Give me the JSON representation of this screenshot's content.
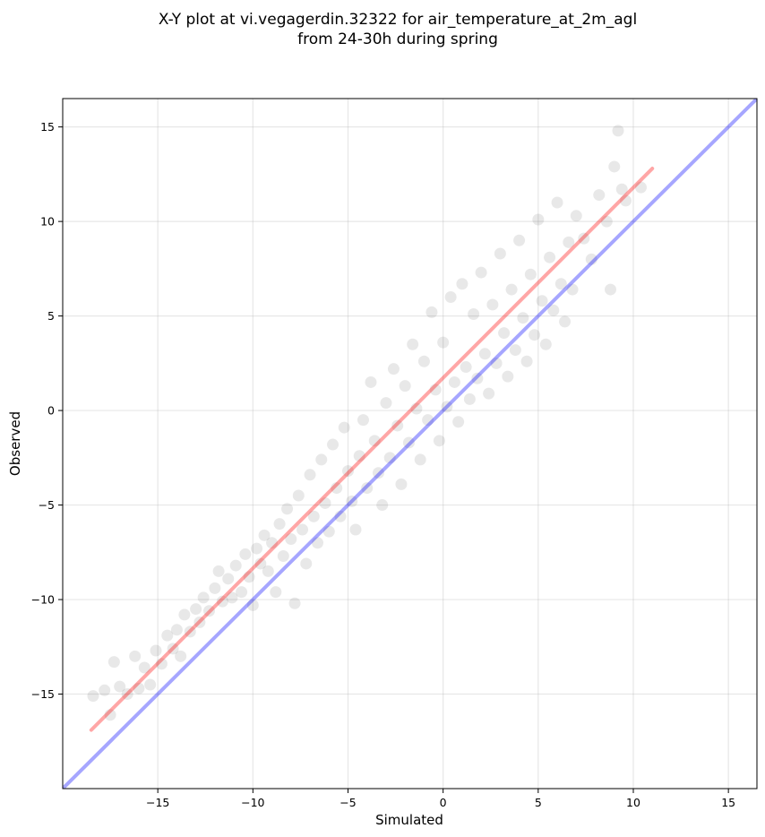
{
  "chart_data": {
    "type": "scatter",
    "title": "X-Y plot at vi.vegagerdin.32322 for air_temperature_at_2m_agl",
    "subtitle": "from 24-30h during spring",
    "xlabel": "Simulated",
    "ylabel": "Observed",
    "xlim": [
      -20.0,
      16.5
    ],
    "ylim": [
      -20.0,
      16.5
    ],
    "xticks": [
      -15,
      -10,
      -5,
      0,
      5,
      10,
      15
    ],
    "yticks": [
      -15,
      -10,
      -5,
      0,
      5,
      10,
      15
    ],
    "xtick_labels": [
      "−15",
      "−10",
      "−5",
      "0",
      "5",
      "10",
      "15"
    ],
    "ytick_labels": [
      "−15",
      "−10",
      "−5",
      "0",
      "5",
      "10",
      "15"
    ],
    "grid": true,
    "point_color": "#000000",
    "point_opacity": 0.09,
    "identity_line": {
      "color": "#0000ff",
      "opacity": 0.35,
      "x": [
        -20.0,
        16.5
      ],
      "y": [
        -20.0,
        16.5
      ]
    },
    "fit_line": {
      "color": "#ff0000",
      "opacity": 0.35,
      "x": [
        -18.5,
        11.0
      ],
      "y": [
        -16.9,
        12.8
      ]
    },
    "points_estimated": [
      [
        -18.4,
        -15.1
      ],
      [
        -17.8,
        -14.8
      ],
      [
        -17.5,
        -16.1
      ],
      [
        -17.3,
        -13.3
      ],
      [
        -17.0,
        -14.6
      ],
      [
        -16.6,
        -15.0
      ],
      [
        -16.2,
        -13.0
      ],
      [
        -16.0,
        -14.7
      ],
      [
        -15.7,
        -13.6
      ],
      [
        -15.4,
        -14.5
      ],
      [
        -15.1,
        -12.7
      ],
      [
        -14.8,
        -13.4
      ],
      [
        -14.5,
        -11.9
      ],
      [
        -14.2,
        -12.6
      ],
      [
        -14.0,
        -11.6
      ],
      [
        -13.8,
        -13.0
      ],
      [
        -13.6,
        -10.8
      ],
      [
        -13.3,
        -11.7
      ],
      [
        -13.0,
        -10.5
      ],
      [
        -12.8,
        -11.2
      ],
      [
        -12.6,
        -9.9
      ],
      [
        -12.3,
        -10.6
      ],
      [
        -12.0,
        -9.4
      ],
      [
        -11.8,
        -8.5
      ],
      [
        -11.6,
        -10.1
      ],
      [
        -11.3,
        -8.9
      ],
      [
        -11.1,
        -9.9
      ],
      [
        -10.9,
        -8.2
      ],
      [
        -10.6,
        -9.6
      ],
      [
        -10.4,
        -7.6
      ],
      [
        -10.2,
        -8.8
      ],
      [
        -10.0,
        -10.3
      ],
      [
        -9.8,
        -7.3
      ],
      [
        -9.6,
        -8.1
      ],
      [
        -9.4,
        -6.6
      ],
      [
        -9.2,
        -8.5
      ],
      [
        -9.0,
        -7.0
      ],
      [
        -8.8,
        -9.6
      ],
      [
        -8.6,
        -6.0
      ],
      [
        -8.4,
        -7.7
      ],
      [
        -8.2,
        -5.2
      ],
      [
        -8.0,
        -6.8
      ],
      [
        -7.8,
        -10.2
      ],
      [
        -7.6,
        -4.5
      ],
      [
        -7.4,
        -6.3
      ],
      [
        -7.2,
        -8.1
      ],
      [
        -7.0,
        -3.4
      ],
      [
        -6.8,
        -5.6
      ],
      [
        -6.6,
        -7.0
      ],
      [
        -6.4,
        -2.6
      ],
      [
        -6.2,
        -4.9
      ],
      [
        -6.0,
        -6.4
      ],
      [
        -5.8,
        -1.8
      ],
      [
        -5.6,
        -4.1
      ],
      [
        -5.4,
        -5.6
      ],
      [
        -5.2,
        -0.9
      ],
      [
        -5.0,
        -3.2
      ],
      [
        -4.8,
        -4.8
      ],
      [
        -4.6,
        -6.3
      ],
      [
        -4.4,
        -2.4
      ],
      [
        -4.2,
        -0.5
      ],
      [
        -4.0,
        -4.1
      ],
      [
        -3.8,
        1.5
      ],
      [
        -3.6,
        -1.6
      ],
      [
        -3.4,
        -3.3
      ],
      [
        -3.2,
        -5.0
      ],
      [
        -3.0,
        0.4
      ],
      [
        -2.8,
        -2.5
      ],
      [
        -2.6,
        2.2
      ],
      [
        -2.4,
        -0.8
      ],
      [
        -2.2,
        -3.9
      ],
      [
        -2.0,
        1.3
      ],
      [
        -1.8,
        -1.7
      ],
      [
        -1.6,
        3.5
      ],
      [
        -1.4,
        0.1
      ],
      [
        -1.2,
        -2.6
      ],
      [
        -1.0,
        2.6
      ],
      [
        -0.8,
        -0.5
      ],
      [
        -0.6,
        5.2
      ],
      [
        -0.4,
        1.1
      ],
      [
        -0.2,
        -1.6
      ],
      [
        0.0,
        3.6
      ],
      [
        0.2,
        0.2
      ],
      [
        0.4,
        6.0
      ],
      [
        0.6,
        1.5
      ],
      [
        0.8,
        -0.6
      ],
      [
        1.0,
        6.7
      ],
      [
        1.2,
        2.3
      ],
      [
        1.4,
        0.6
      ],
      [
        1.6,
        5.1
      ],
      [
        1.8,
        1.7
      ],
      [
        2.0,
        7.3
      ],
      [
        2.2,
        3.0
      ],
      [
        2.4,
        0.9
      ],
      [
        2.6,
        5.6
      ],
      [
        2.8,
        2.5
      ],
      [
        3.0,
        8.3
      ],
      [
        3.2,
        4.1
      ],
      [
        3.4,
        1.8
      ],
      [
        3.6,
        6.4
      ],
      [
        3.8,
        3.2
      ],
      [
        4.0,
        9.0
      ],
      [
        4.2,
        4.9
      ],
      [
        4.4,
        2.6
      ],
      [
        4.6,
        7.2
      ],
      [
        4.8,
        4.0
      ],
      [
        5.0,
        10.1
      ],
      [
        5.2,
        5.8
      ],
      [
        5.4,
        3.5
      ],
      [
        5.6,
        8.1
      ],
      [
        5.8,
        5.3
      ],
      [
        6.0,
        11.0
      ],
      [
        6.2,
        6.7
      ],
      [
        6.4,
        4.7
      ],
      [
        6.6,
        8.9
      ],
      [
        6.8,
        6.4
      ],
      [
        7.0,
        10.3
      ],
      [
        7.4,
        9.1
      ],
      [
        7.8,
        8.0
      ],
      [
        8.2,
        11.4
      ],
      [
        8.6,
        10.0
      ],
      [
        9.0,
        12.9
      ],
      [
        9.2,
        14.8
      ],
      [
        9.4,
        11.7
      ],
      [
        8.8,
        6.4
      ],
      [
        9.6,
        11.1
      ],
      [
        10.4,
        11.8
      ]
    ]
  }
}
